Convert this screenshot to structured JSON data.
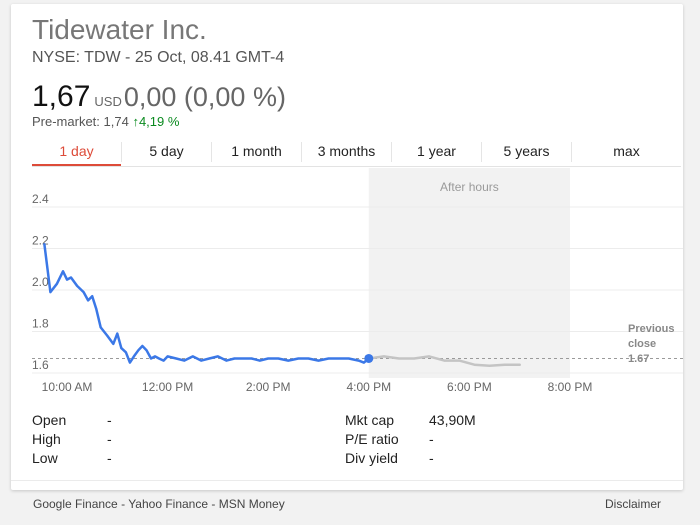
{
  "header": {
    "company": "Tidewater Inc.",
    "exchange_line": "NYSE: TDW - 25 Oct, 08.41 GMT-4",
    "price": "1,67",
    "currency": "USD",
    "change": "0,00 (0,00 %)",
    "premarket_label": "Pre-market: 1,74",
    "premarket_arrow": "↑",
    "premarket_change": "4,19 %"
  },
  "tabs": [
    {
      "label": "1 day",
      "active": true
    },
    {
      "label": "5 day"
    },
    {
      "label": "1 month"
    },
    {
      "label": "3 months"
    },
    {
      "label": "1 year"
    },
    {
      "label": "5 years"
    },
    {
      "label": "max"
    }
  ],
  "chart_data": {
    "type": "line",
    "ylim": [
      1.6,
      2.4
    ],
    "xlim": [
      "09:30",
      "08:30 PM"
    ],
    "y_ticks": [
      "2.4",
      "2.2",
      "2.0",
      "1.8",
      "1.6"
    ],
    "y_tick_values": [
      2.4,
      2.2,
      2.0,
      1.8,
      1.6
    ],
    "x_ticks": [
      {
        "label": "10:00 AM",
        "hour": 10
      },
      {
        "label": "12:00 PM",
        "hour": 12
      },
      {
        "label": "2:00 PM",
        "hour": 14
      },
      {
        "label": "4:00 PM",
        "hour": 16
      },
      {
        "label": "6:00 PM",
        "hour": 18
      },
      {
        "label": "8:00 PM",
        "hour": 20
      }
    ],
    "after_hours_label": "After hours",
    "after_hours_range": [
      16,
      20
    ],
    "previous_close_label": [
      "Previous",
      "close"
    ],
    "previous_close_value": "1.67",
    "previous_close": 1.67,
    "colors": {
      "regular": "#3b78e7",
      "after_hours": "#c4c4c4",
      "shade": "#f2f2f2"
    },
    "series": [
      {
        "session": "regular",
        "x": [
          9.55,
          9.67,
          9.8,
          9.92,
          10.0,
          10.08,
          10.2,
          10.33,
          10.42,
          10.5,
          10.58,
          10.67,
          10.8,
          10.92,
          11.0,
          11.08,
          11.17,
          11.25,
          11.33,
          11.42,
          11.5,
          11.58,
          11.67,
          11.75,
          11.83,
          11.92,
          12.0,
          12.17,
          12.33,
          12.5,
          12.67,
          12.83,
          13.0,
          13.17,
          13.33,
          13.5,
          13.67,
          13.83,
          14.0,
          14.2,
          14.4,
          14.6,
          14.8,
          15.0,
          15.2,
          15.4,
          15.6,
          15.8,
          15.9,
          16.0
        ],
        "y": [
          2.22,
          1.99,
          2.03,
          2.09,
          2.05,
          2.06,
          2.02,
          1.99,
          1.95,
          1.97,
          1.91,
          1.82,
          1.78,
          1.74,
          1.79,
          1.72,
          1.7,
          1.65,
          1.68,
          1.71,
          1.73,
          1.71,
          1.67,
          1.68,
          1.67,
          1.66,
          1.68,
          1.67,
          1.66,
          1.68,
          1.66,
          1.67,
          1.68,
          1.66,
          1.67,
          1.67,
          1.67,
          1.66,
          1.67,
          1.67,
          1.66,
          1.67,
          1.67,
          1.66,
          1.67,
          1.67,
          1.67,
          1.66,
          1.65,
          1.67
        ]
      },
      {
        "session": "after_hours",
        "x": [
          16.0,
          16.3,
          16.6,
          16.9,
          17.2,
          17.5,
          17.8,
          18.1,
          18.4,
          18.7,
          19.0
        ],
        "y": [
          1.67,
          1.68,
          1.67,
          1.67,
          1.68,
          1.66,
          1.66,
          1.64,
          1.635,
          1.64,
          1.64
        ]
      }
    ],
    "last_point": {
      "x": 16.0,
      "y": 1.67
    }
  },
  "stats": [
    {
      "label": "Open",
      "value": "-"
    },
    {
      "label": "High",
      "value": "-"
    },
    {
      "label": "Low",
      "value": "-"
    },
    {
      "label": "Mkt cap",
      "value": "43,90M"
    },
    {
      "label": "P/E ratio",
      "value": "-"
    },
    {
      "label": "Div yield",
      "value": "-"
    }
  ],
  "footer": {
    "sources": [
      "Google Finance",
      "Yahoo Finance",
      "MSN Money"
    ],
    "separator": " - ",
    "disclaimer": "Disclaimer"
  }
}
